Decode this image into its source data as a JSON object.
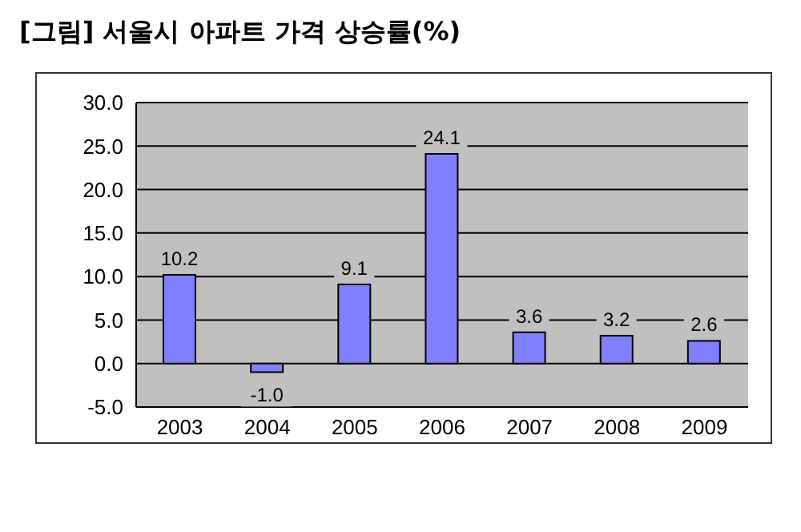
{
  "chart_data": {
    "type": "bar",
    "title": "[그림] 서울시 아파트 가격 상승률(%)",
    "categories": [
      "2003",
      "2004",
      "2005",
      "2006",
      "2007",
      "2008",
      "2009"
    ],
    "values": [
      10.2,
      -1.0,
      9.1,
      24.1,
      3.6,
      3.2,
      2.6
    ],
    "value_labels": [
      "10.2",
      "-1.0",
      "9.1",
      "24.1",
      "3.6",
      "3.2",
      "2.6"
    ],
    "color": "#8080ff",
    "ylim": [
      -5,
      30
    ],
    "yticks": [
      {
        "value": -5,
        "label": "-5.0"
      },
      {
        "value": 0,
        "label": "0.0"
      },
      {
        "value": 5,
        "label": "5.0"
      },
      {
        "value": 10,
        "label": "10.0"
      },
      {
        "value": 15,
        "label": "15.0"
      },
      {
        "value": 20,
        "label": "20.0"
      },
      {
        "value": 25,
        "label": "25.0"
      },
      {
        "value": 30,
        "label": "30.0"
      }
    ],
    "grid": "y",
    "legend": false
  }
}
